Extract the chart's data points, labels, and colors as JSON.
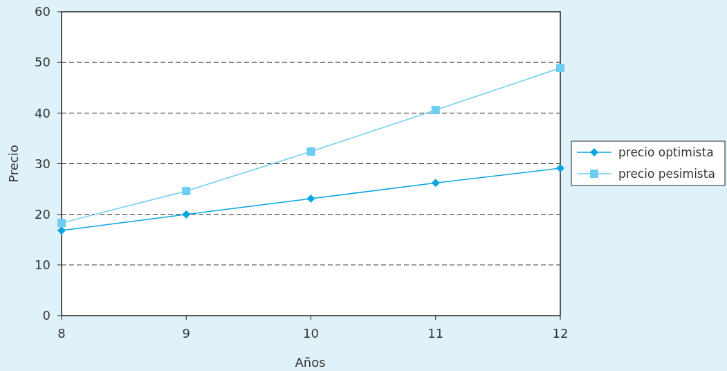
{
  "chart_data": {
    "type": "line",
    "xlabel": "Años",
    "ylabel": "Precio",
    "x": [
      8,
      9,
      10,
      11,
      12
    ],
    "xlim": [
      8,
      12
    ],
    "xticks": [
      8,
      9,
      10,
      11,
      12
    ],
    "ylim": [
      0,
      60
    ],
    "yticks": [
      0,
      10,
      20,
      30,
      40,
      50,
      60
    ],
    "grid": "y",
    "legend": "right",
    "line_style": "solid",
    "series": [
      {
        "name": "precio optimista",
        "color": "#0aa5e0",
        "marker": "diamond",
        "values": [
          16.8,
          20,
          23.1,
          26.2,
          29.1
        ]
      },
      {
        "name": "precio pesimista",
        "color": "#6dcdf0",
        "marker": "square",
        "values": [
          18.3,
          24.6,
          32.4,
          40.6,
          48.9
        ]
      }
    ]
  }
}
